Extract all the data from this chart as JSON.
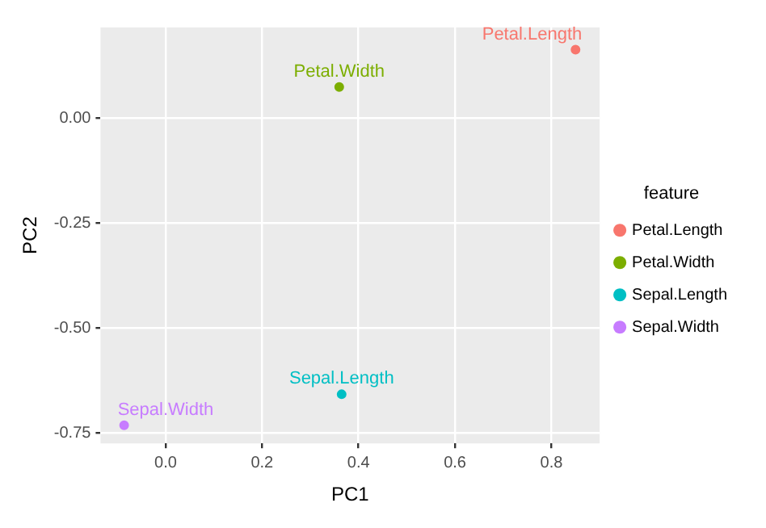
{
  "chart_data": {
    "type": "scatter",
    "xlabel": "PC1",
    "ylabel": "PC2",
    "legend_title": "feature",
    "legend": "right",
    "marker": "circle",
    "grid": true,
    "xlim": [
      -0.135,
      0.9
    ],
    "ylim": [
      -0.775,
      0.216
    ],
    "xticks": [
      {
        "value": 0,
        "label": "0.0"
      },
      {
        "value": 0.2,
        "label": "0.2"
      },
      {
        "value": 0.4,
        "label": "0.4"
      },
      {
        "value": 0.6,
        "label": "0.6"
      },
      {
        "value": 0.8,
        "label": "0.8"
      }
    ],
    "yticks": [
      {
        "value": 0,
        "label": "0.00"
      },
      {
        "value": -0.25,
        "label": "-0.25"
      },
      {
        "value": -0.5,
        "label": "-0.50"
      },
      {
        "value": -0.75,
        "label": "-0.75"
      }
    ],
    "series": [
      {
        "name": "Petal.Length",
        "color": "#f8766d",
        "x": [
          0.85
        ],
        "values": [
          0.163
        ]
      },
      {
        "name": "Petal.Width",
        "color": "#7cae00",
        "x": [
          0.36
        ],
        "values": [
          0.074
        ]
      },
      {
        "name": "Sepal.Length",
        "color": "#00bfc4",
        "x": [
          0.365
        ],
        "values": [
          -0.658
        ]
      },
      {
        "name": "Sepal.Width",
        "color": "#c77cff",
        "x": [
          -0.086
        ],
        "values": [
          -0.732
        ]
      }
    ]
  }
}
